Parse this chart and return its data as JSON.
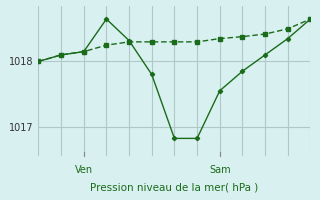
{
  "title": "",
  "xlabel": "Pression niveau de la mer( hPa )",
  "ylabel": "",
  "bg_color": "#d8f0f0",
  "grid_color": "#b0c8c8",
  "line_color": "#1a6b1a",
  "yticks": [
    1017,
    1018
  ],
  "ylim": [
    1016.55,
    1018.85
  ],
  "xlim": [
    0,
    12
  ],
  "ven_x": 2,
  "sam_x": 8,
  "line1_x": [
    0,
    1,
    2,
    3,
    4,
    5,
    6,
    7,
    8,
    9,
    10,
    11,
    12
  ],
  "line1_y": [
    1018.0,
    1018.1,
    1018.15,
    1018.25,
    1018.3,
    1018.3,
    1018.3,
    1018.3,
    1018.35,
    1018.38,
    1018.42,
    1018.5,
    1018.65
  ],
  "line2_x": [
    0,
    1,
    2,
    3,
    4,
    5,
    6,
    7,
    8,
    9,
    10,
    11,
    12
  ],
  "line2_y": [
    1018.0,
    1018.1,
    1018.15,
    1018.65,
    1018.32,
    1017.8,
    1016.82,
    1016.82,
    1017.55,
    1017.85,
    1018.1,
    1018.35,
    1018.65
  ]
}
